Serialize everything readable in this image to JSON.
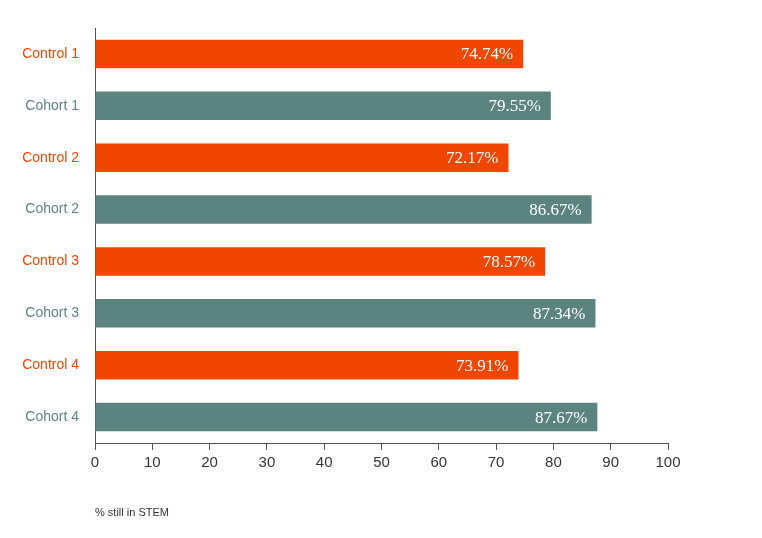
{
  "chart_data": {
    "type": "bar",
    "orientation": "horizontal",
    "categories": [
      "Control 1",
      "Cohort 1",
      "Control 2",
      "Cohort 2",
      "Control 3",
      "Cohort 3",
      "Control 4",
      "Cohort 4"
    ],
    "values": [
      74.74,
      79.55,
      72.17,
      86.67,
      78.57,
      87.34,
      73.91,
      87.67
    ],
    "value_labels": [
      "74.74%",
      "79.55%",
      "72.17%",
      "86.67%",
      "78.57%",
      "87.34%",
      "73.91%",
      "87.67%"
    ],
    "colors": [
      "#f04600",
      "#5b837f",
      "#f04600",
      "#5b837f",
      "#f04600",
      "#5b837f",
      "#f04600",
      "#5b837f"
    ],
    "xlabel": "% still in STEM",
    "xlim": [
      0,
      100
    ],
    "xticks": [
      0,
      10,
      20,
      30,
      40,
      50,
      60,
      70,
      80,
      90,
      100
    ],
    "grid": false,
    "data_labels": true
  }
}
